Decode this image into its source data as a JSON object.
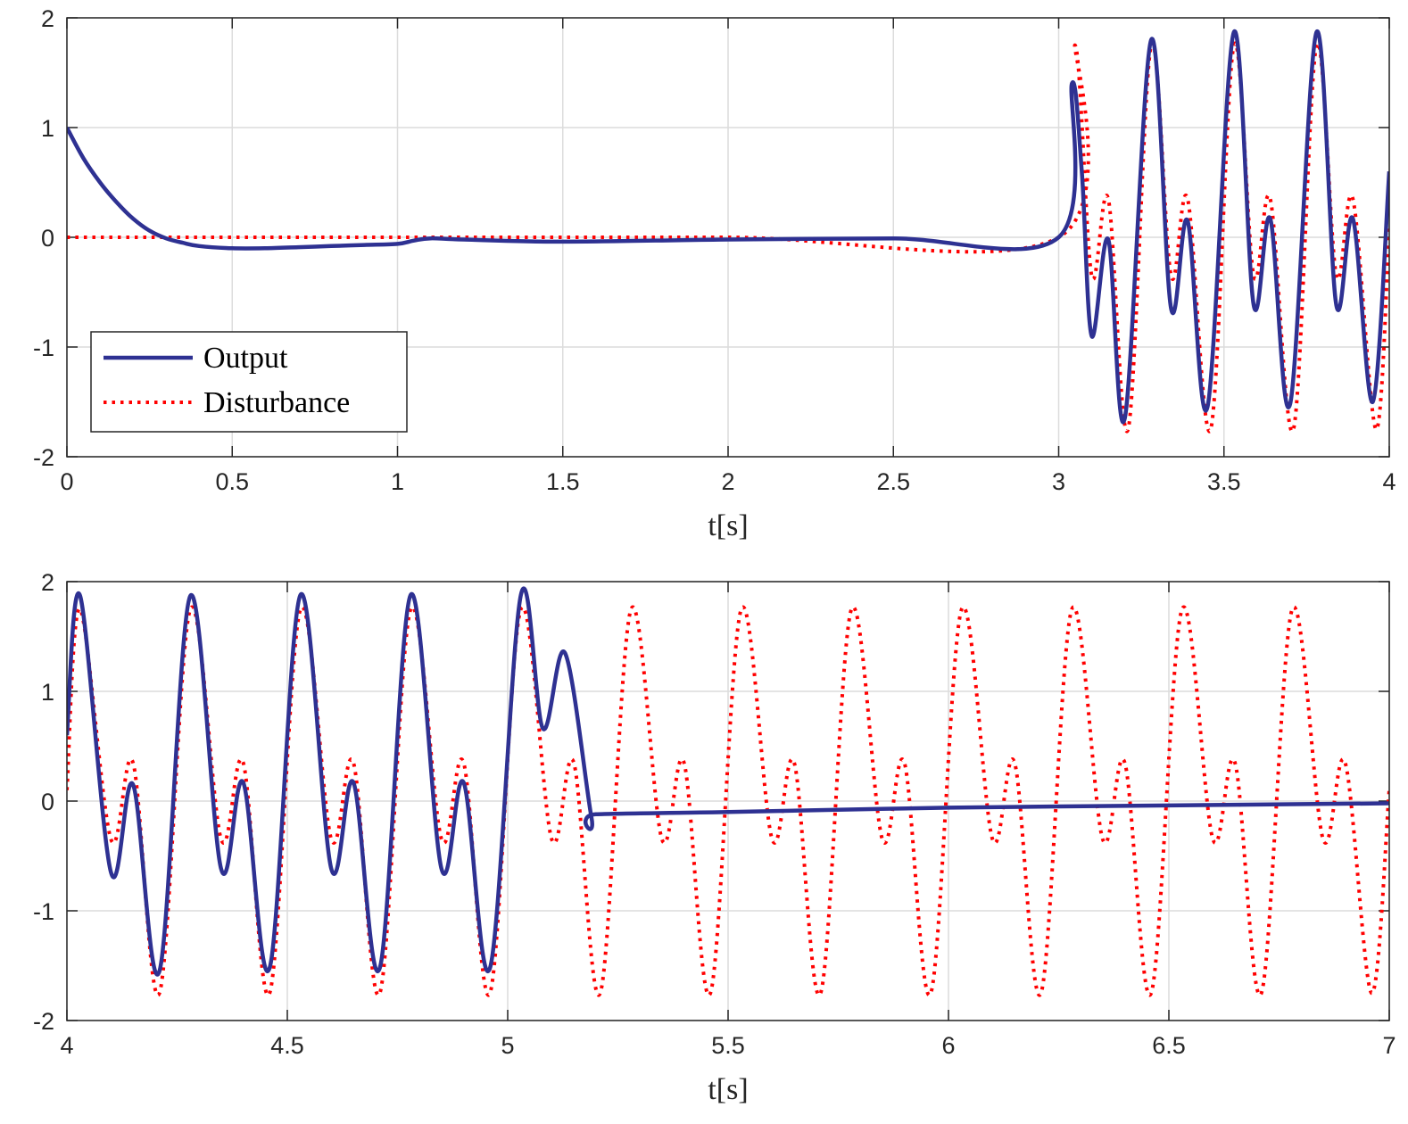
{
  "colors": {
    "output": "#2e3192",
    "disturbance": "#ff0000",
    "grid": "#dcdcdc",
    "axis": "#262626"
  },
  "chart_data": [
    {
      "type": "line",
      "xlabel": "t[s]",
      "ylabel": "",
      "xlim": [
        0,
        4
      ],
      "ylim": [
        -2,
        2
      ],
      "xticks": [
        0,
        0.5,
        1,
        1.5,
        2,
        2.5,
        3,
        3.5,
        4
      ],
      "xtick_labels": [
        "0",
        "0.5",
        "1",
        "1.5",
        "2",
        "2.5",
        "3",
        "3.5",
        "4"
      ],
      "yticks": [
        -2,
        -1,
        0,
        1,
        2
      ],
      "ytick_labels": [
        "-2",
        "-1",
        "0",
        "1",
        "2"
      ],
      "grid": true,
      "legend": {
        "position": "bottom-left",
        "entries": [
          "Output",
          "Disturbance"
        ]
      },
      "series": [
        {
          "name": "Output",
          "style": "solid",
          "x": [
            0,
            0.05,
            0.1,
            0.15,
            0.2,
            0.25,
            0.3,
            0.35,
            0.4,
            0.5,
            0.6,
            0.7,
            0.8,
            0.9,
            1.0,
            1.05,
            1.1,
            1.2,
            1.5,
            2.0,
            2.5,
            3.0,
            3.04,
            3.07,
            3.1,
            3.15,
            3.2,
            3.28,
            3.34,
            3.39,
            3.45,
            3.53,
            3.59,
            3.64,
            3.7,
            3.78,
            3.84,
            3.89,
            3.95,
            4.0
          ],
          "y": [
            1.0,
            0.72,
            0.5,
            0.32,
            0.17,
            0.06,
            -0.01,
            -0.05,
            -0.08,
            -0.1,
            -0.1,
            -0.09,
            -0.08,
            -0.07,
            -0.06,
            -0.03,
            -0.01,
            -0.02,
            -0.04,
            -0.02,
            -0.01,
            0.0,
            1.4,
            0.6,
            -0.9,
            -0.02,
            -1.65,
            1.8,
            -0.65,
            0.15,
            -1.55,
            1.87,
            -0.62,
            0.17,
            -1.52,
            1.87,
            -0.62,
            0.17,
            -1.5,
            0.6
          ]
        },
        {
          "name": "Disturbance",
          "style": "dotted",
          "x": [
            0,
            1,
            2,
            3.0,
            3.05,
            3.1,
            3.15,
            3.21,
            3.28,
            3.34,
            3.39,
            3.46,
            3.53,
            3.59,
            3.64,
            3.71,
            3.78,
            3.84,
            3.89,
            3.96,
            4.0
          ],
          "y": [
            0,
            0,
            0,
            0,
            1.75,
            -0.35,
            0.35,
            -1.75,
            1.75,
            -0.35,
            0.35,
            -1.75,
            1.75,
            -0.35,
            0.35,
            -1.75,
            1.75,
            -0.35,
            0.35,
            -1.75,
            0.1
          ]
        }
      ]
    },
    {
      "type": "line",
      "xlabel": "t[s]",
      "ylabel": "",
      "xlim": [
        4,
        7
      ],
      "ylim": [
        -2,
        2
      ],
      "xticks": [
        4,
        4.5,
        5,
        5.5,
        6,
        6.5,
        7
      ],
      "xtick_labels": [
        "4",
        "4.5",
        "5",
        "5.5",
        "6",
        "6.5",
        "7"
      ],
      "yticks": [
        -2,
        -1,
        0,
        1,
        2
      ],
      "ytick_labels": [
        "-2",
        "-1",
        "0",
        "1",
        "2"
      ],
      "grid": true,
      "series": [
        {
          "name": "Output",
          "style": "solid",
          "x": [
            4.0,
            4.03,
            4.1,
            4.15,
            4.21,
            4.28,
            4.35,
            4.4,
            4.46,
            4.53,
            4.6,
            4.65,
            4.71,
            4.78,
            4.85,
            4.9,
            4.96,
            5.03,
            5.08,
            5.13,
            5.19,
            5.2,
            5.5,
            6.0,
            6.5,
            7.0
          ],
          "y": [
            0.6,
            1.87,
            -0.65,
            0.15,
            -1.55,
            1.87,
            -0.62,
            0.17,
            -1.52,
            1.88,
            -0.62,
            0.17,
            -1.52,
            1.88,
            -0.62,
            0.17,
            -1.52,
            1.88,
            0.66,
            1.35,
            -0.15,
            -0.12,
            -0.1,
            -0.06,
            -0.04,
            -0.02
          ]
        },
        {
          "name": "Disturbance",
          "style": "dotted",
          "x": [
            4.0,
            4.03,
            4.1,
            4.15,
            4.21,
            4.28,
            4.35,
            4.4,
            4.46,
            4.53,
            4.6,
            4.65,
            4.71,
            4.78,
            4.85,
            4.9,
            4.96,
            5.03,
            5.1,
            5.15,
            5.21,
            5.28,
            5.35,
            5.4,
            5.46,
            5.53,
            5.6,
            5.65,
            5.71,
            5.78,
            5.85,
            5.9,
            5.96,
            6.03,
            6.1,
            6.15,
            6.21,
            6.28,
            6.35,
            6.4,
            6.46,
            6.53,
            6.6,
            6.65,
            6.71,
            6.78,
            6.85,
            6.9,
            6.96,
            7.0
          ],
          "y": [
            0.1,
            1.75,
            -0.35,
            0.35,
            -1.75,
            1.75,
            -0.35,
            0.35,
            -1.75,
            1.75,
            -0.35,
            0.35,
            -1.75,
            1.75,
            -0.35,
            0.35,
            -1.75,
            1.75,
            -0.35,
            0.35,
            -1.75,
            1.75,
            -0.35,
            0.35,
            -1.75,
            1.75,
            -0.35,
            0.35,
            -1.75,
            1.75,
            -0.35,
            0.35,
            -1.75,
            1.75,
            -0.35,
            0.35,
            -1.75,
            1.75,
            -0.35,
            0.35,
            -1.75,
            1.75,
            -0.35,
            0.35,
            -1.75,
            1.75,
            -0.35,
            0.35,
            -1.75,
            0.1
          ]
        }
      ]
    }
  ]
}
